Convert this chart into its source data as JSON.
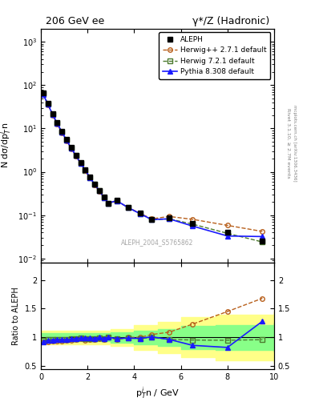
{
  "title_left": "206 GeV ee",
  "title_right": "γ*/Z (Hadronic)",
  "ylabel_main": "N dσ/dp$_T^i$n",
  "ylabel_ratio": "Ratio to ALEPH",
  "xlabel": "p$_T^i$n / GeV",
  "right_label": "Rivet 3.1.10, ≥ 2.7M events",
  "watermark": "ALEPH_2004_S5765862",
  "watermark2": "mcplots.cern.ch [arXiv:1306.3436]",
  "aleph_x": [
    0.1,
    0.3,
    0.5,
    0.7,
    0.9,
    1.1,
    1.3,
    1.5,
    1.7,
    1.9,
    2.1,
    2.3,
    2.5,
    2.7,
    2.9,
    3.25,
    3.75,
    4.25,
    4.75,
    5.5,
    6.5,
    8.0,
    9.5
  ],
  "aleph_y": [
    65.0,
    38.0,
    22.0,
    13.5,
    8.5,
    5.5,
    3.6,
    2.4,
    1.6,
    1.1,
    0.75,
    0.52,
    0.37,
    0.26,
    0.19,
    0.22,
    0.15,
    0.11,
    0.078,
    0.085,
    0.065,
    0.04,
    0.025
  ],
  "herwig_x": [
    0.1,
    0.3,
    0.5,
    0.7,
    0.9,
    1.1,
    1.3,
    1.5,
    1.7,
    1.9,
    2.1,
    2.3,
    2.5,
    2.7,
    2.9,
    3.25,
    3.75,
    4.25,
    4.75,
    5.5,
    6.5,
    8.0,
    9.5
  ],
  "herwig_y": [
    60.0,
    35.0,
    20.5,
    12.5,
    8.0,
    5.2,
    3.4,
    2.3,
    1.55,
    1.05,
    0.72,
    0.5,
    0.36,
    0.25,
    0.19,
    0.21,
    0.15,
    0.11,
    0.082,
    0.093,
    0.08,
    0.058,
    0.042
  ],
  "herwig72_x": [
    0.1,
    0.3,
    0.5,
    0.7,
    0.9,
    1.1,
    1.3,
    1.5,
    1.7,
    1.9,
    2.1,
    2.3,
    2.5,
    2.7,
    2.9,
    3.25,
    3.75,
    4.25,
    4.75,
    5.5,
    6.5,
    8.0,
    9.5
  ],
  "herwig72_y": [
    62.0,
    36.5,
    21.2,
    13.0,
    8.2,
    5.3,
    3.5,
    2.35,
    1.58,
    1.08,
    0.73,
    0.51,
    0.365,
    0.255,
    0.19,
    0.215,
    0.148,
    0.108,
    0.078,
    0.082,
    0.062,
    0.038,
    0.024
  ],
  "pythia_x": [
    0.1,
    0.3,
    0.5,
    0.7,
    0.9,
    1.1,
    1.3,
    1.5,
    1.7,
    1.9,
    2.1,
    2.3,
    2.5,
    2.7,
    2.9,
    3.25,
    3.75,
    4.25,
    4.75,
    5.5,
    6.5,
    8.0,
    9.5
  ],
  "pythia_y": [
    60.0,
    36.0,
    21.0,
    13.0,
    8.2,
    5.3,
    3.5,
    2.35,
    1.58,
    1.09,
    0.74,
    0.51,
    0.37,
    0.255,
    0.19,
    0.215,
    0.148,
    0.108,
    0.079,
    0.082,
    0.056,
    0.033,
    0.032
  ],
  "ratio_herwig_x": [
    0.1,
    0.3,
    0.5,
    0.7,
    0.9,
    1.1,
    1.3,
    1.5,
    1.7,
    1.9,
    2.1,
    2.3,
    2.5,
    2.7,
    2.9,
    3.25,
    3.75,
    4.25,
    4.75,
    5.5,
    6.5,
    8.0,
    9.5
  ],
  "ratio_herwig_y": [
    0.92,
    0.92,
    0.93,
    0.93,
    0.94,
    0.95,
    0.95,
    0.96,
    0.97,
    0.95,
    0.96,
    0.96,
    0.97,
    0.96,
    1.0,
    0.96,
    1.0,
    1.0,
    1.05,
    1.09,
    1.23,
    1.45,
    1.68
  ],
  "ratio_herwig72_x": [
    0.1,
    0.3,
    0.5,
    0.7,
    0.9,
    1.1,
    1.3,
    1.5,
    1.7,
    1.9,
    2.1,
    2.3,
    2.5,
    2.7,
    2.9,
    3.25,
    3.75,
    4.25,
    4.75,
    5.5,
    6.5,
    8.0,
    9.5
  ],
  "ratio_herwig72_y": [
    0.95,
    0.96,
    0.96,
    0.96,
    0.965,
    0.96,
    0.97,
    0.98,
    0.99,
    0.98,
    0.97,
    0.98,
    0.99,
    0.98,
    1.0,
    0.98,
    0.987,
    0.982,
    1.0,
    0.965,
    0.954,
    0.95,
    0.96
  ],
  "ratio_pythia_x": [
    0.1,
    0.3,
    0.5,
    0.7,
    0.9,
    1.1,
    1.3,
    1.5,
    1.7,
    1.9,
    2.1,
    2.3,
    2.5,
    2.7,
    2.9,
    3.25,
    3.75,
    4.25,
    4.75,
    5.5,
    6.5,
    8.0,
    9.5
  ],
  "ratio_pythia_y": [
    0.92,
    0.95,
    0.955,
    0.96,
    0.965,
    0.96,
    0.97,
    0.98,
    0.99,
    0.99,
    0.99,
    0.98,
    1.0,
    0.98,
    1.0,
    0.98,
    0.987,
    0.982,
    1.01,
    0.965,
    0.862,
    0.825,
    1.28
  ],
  "band_yellow_x": [
    0.0,
    1.0,
    2.0,
    3.0,
    4.0,
    5.0,
    6.0,
    7.5,
    10.0
  ],
  "band_yellow_lo": [
    0.88,
    0.88,
    0.88,
    0.85,
    0.78,
    0.73,
    0.65,
    0.6,
    0.55
  ],
  "band_yellow_hi": [
    1.12,
    1.12,
    1.12,
    1.15,
    1.22,
    1.27,
    1.35,
    1.4,
    1.45
  ],
  "band_green_x": [
    0.0,
    1.0,
    2.0,
    3.0,
    4.0,
    5.0,
    6.0,
    7.5,
    10.0
  ],
  "band_green_lo": [
    0.93,
    0.93,
    0.93,
    0.91,
    0.88,
    0.85,
    0.8,
    0.78,
    0.75
  ],
  "band_green_hi": [
    1.07,
    1.07,
    1.07,
    1.09,
    1.12,
    1.15,
    1.2,
    1.22,
    1.25
  ],
  "color_aleph": "#000000",
  "color_herwig": "#b8601c",
  "color_herwig72": "#4c7a2e",
  "color_pythia": "#1a1aff",
  "color_yellow": "#ffff88",
  "color_green": "#88ff88",
  "xlim": [
    0,
    10
  ],
  "ylim_main": [
    0.008,
    2000
  ],
  "ylim_ratio": [
    0.45,
    2.3
  ]
}
